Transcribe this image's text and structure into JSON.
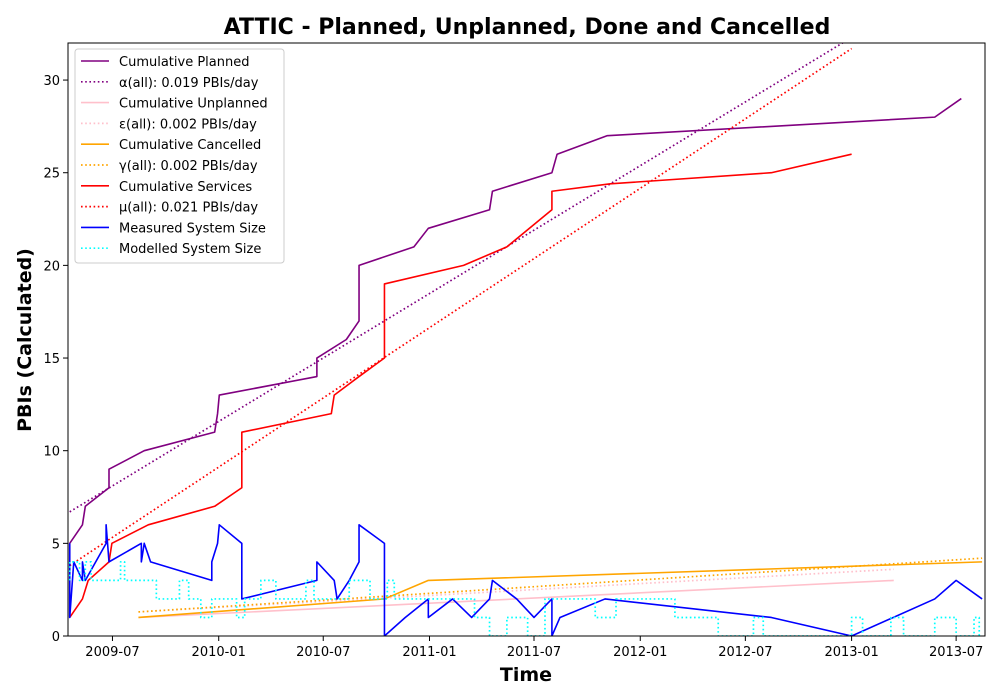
{
  "chart_data": {
    "type": "line",
    "title": "ATTIC - Planned, Unplanned, Done  and Cancelled",
    "xlabel": "Time",
    "ylabel": "PBIs (Calculated)",
    "xlim": [
      "2009-04-15",
      "2013-08-20"
    ],
    "ylim": [
      0,
      32
    ],
    "x_ticks": [
      "2009-07-01",
      "2010-01-01",
      "2010-07-01",
      "2011-01-01",
      "2011-07-01",
      "2012-01-01",
      "2012-07-01",
      "2013-01-01",
      "2013-07-01"
    ],
    "x_tick_labels": [
      "2009-07",
      "2010-01",
      "2010-07",
      "2011-01",
      "2011-07",
      "2012-01",
      "2012-07",
      "2013-01",
      "2013-07"
    ],
    "y_ticks": [
      0,
      5,
      10,
      15,
      20,
      25,
      30
    ],
    "y_tick_labels": [
      "0",
      "5",
      "10",
      "15",
      "20",
      "25",
      "30"
    ],
    "legend_position": "top-left",
    "grid": false,
    "series": [
      {
        "name": "Cumulative Planned",
        "color": "#800080",
        "style": "solid",
        "points": [
          [
            "2009-04-18",
            1
          ],
          [
            "2009-04-18",
            5
          ],
          [
            "2009-05-10",
            6
          ],
          [
            "2009-05-15",
            7
          ],
          [
            "2009-06-25",
            8
          ],
          [
            "2009-06-25",
            9
          ],
          [
            "2009-08-25",
            10
          ],
          [
            "2009-12-25",
            11
          ],
          [
            "2009-12-30",
            12
          ],
          [
            "2010-01-02",
            13
          ],
          [
            "2010-06-20",
            14
          ],
          [
            "2010-06-20",
            15
          ],
          [
            "2010-08-10",
            16
          ],
          [
            "2010-09-01",
            17
          ],
          [
            "2010-09-01",
            20
          ],
          [
            "2010-12-05",
            21
          ],
          [
            "2010-12-30",
            22
          ],
          [
            "2011-04-15",
            23
          ],
          [
            "2011-04-20",
            24
          ],
          [
            "2011-08-01",
            25
          ],
          [
            "2011-08-10",
            26
          ],
          [
            "2011-11-05",
            27
          ],
          [
            "2013-05-25",
            28
          ],
          [
            "2013-07-10",
            29
          ]
        ]
      },
      {
        "name": "α(all): 0.019 PBIs/day",
        "color": "#800080",
        "style": "dotted",
        "points": [
          [
            "2009-04-18",
            6.7
          ],
          [
            "2013-01-01",
            32.3
          ]
        ]
      },
      {
        "name": "Cumulative Unplanned",
        "color": "#ffc0cb",
        "style": "solid",
        "points": [
          [
            "2009-08-15",
            1
          ],
          [
            "2013-03-15",
            3
          ]
        ]
      },
      {
        "name": "ε(all): 0.002 PBIs/day",
        "color": "#ffc0cb",
        "style": "dotted",
        "points": [
          [
            "2009-08-15",
            1.3
          ],
          [
            "2013-03-15",
            3.6
          ]
        ]
      },
      {
        "name": "Cumulative Cancelled",
        "color": "#ffa500",
        "style": "solid",
        "points": [
          [
            "2009-08-15",
            1
          ],
          [
            "2010-10-15",
            2
          ],
          [
            "2010-12-30",
            3
          ],
          [
            "2013-08-15",
            4
          ]
        ]
      },
      {
        "name": "γ(all): 0.002 PBIs/day",
        "color": "#ffa500",
        "style": "dotted",
        "points": [
          [
            "2009-08-15",
            1.3
          ],
          [
            "2013-08-15",
            4.2
          ]
        ]
      },
      {
        "name": "Cumulative Services",
        "color": "#ff0000",
        "style": "solid",
        "points": [
          [
            "2009-04-18",
            1
          ],
          [
            "2009-05-10",
            2
          ],
          [
            "2009-05-20",
            3
          ],
          [
            "2009-06-25",
            4
          ],
          [
            "2009-06-30",
            5
          ],
          [
            "2009-09-01",
            6
          ],
          [
            "2009-12-25",
            7
          ],
          [
            "2010-02-10",
            8
          ],
          [
            "2010-02-10",
            11
          ],
          [
            "2010-07-15",
            12
          ],
          [
            "2010-07-20",
            13
          ],
          [
            "2010-09-01",
            14
          ],
          [
            "2010-10-15",
            15
          ],
          [
            "2010-10-15",
            19
          ],
          [
            "2011-03-01",
            20
          ],
          [
            "2011-05-15",
            21
          ],
          [
            "2011-08-01",
            23
          ],
          [
            "2011-08-01",
            24
          ],
          [
            "2011-11-10",
            24.4
          ],
          [
            "2012-08-15",
            25
          ],
          [
            "2013-01-01",
            26
          ]
        ]
      },
      {
        "name": "μ(all): 0.021 PBIs/day",
        "color": "#ff0000",
        "style": "dotted",
        "points": [
          [
            "2009-04-18",
            3.8
          ],
          [
            "2013-01-01",
            31.7
          ]
        ]
      },
      {
        "name": "Measured System Size",
        "color": "#0000ff",
        "style": "solid",
        "points": [
          [
            "2009-04-18",
            5
          ],
          [
            "2009-04-18",
            1
          ],
          [
            "2009-04-25",
            4
          ],
          [
            "2009-05-10",
            3
          ],
          [
            "2009-05-10",
            4
          ],
          [
            "2009-05-15",
            3
          ],
          [
            "2009-06-20",
            5
          ],
          [
            "2009-06-20",
            6
          ],
          [
            "2009-06-25",
            4
          ],
          [
            "2009-08-20",
            5
          ],
          [
            "2009-08-20",
            4
          ],
          [
            "2009-08-25",
            5
          ],
          [
            "2009-09-05",
            4
          ],
          [
            "2009-12-20",
            3
          ],
          [
            "2009-12-20",
            4
          ],
          [
            "2009-12-30",
            5
          ],
          [
            "2010-01-02",
            6
          ],
          [
            "2010-02-10",
            5
          ],
          [
            "2010-02-10",
            2
          ],
          [
            "2010-06-20",
            3
          ],
          [
            "2010-06-20",
            4
          ],
          [
            "2010-07-20",
            3
          ],
          [
            "2010-07-25",
            2
          ],
          [
            "2010-08-15",
            3
          ],
          [
            "2010-09-01",
            4
          ],
          [
            "2010-09-01",
            6
          ],
          [
            "2010-10-15",
            5
          ],
          [
            "2010-10-15",
            0
          ],
          [
            "2010-11-20",
            1
          ],
          [
            "2010-12-30",
            2
          ],
          [
            "2010-12-30",
            1
          ],
          [
            "2011-02-10",
            2
          ],
          [
            "2011-03-15",
            1
          ],
          [
            "2011-04-15",
            2
          ],
          [
            "2011-04-20",
            3
          ],
          [
            "2011-06-01",
            2
          ],
          [
            "2011-07-01",
            1
          ],
          [
            "2011-08-01",
            2
          ],
          [
            "2011-08-01",
            0
          ],
          [
            "2011-08-15",
            1
          ],
          [
            "2011-11-01",
            2
          ],
          [
            "2012-08-15",
            1
          ],
          [
            "2013-01-01",
            0
          ],
          [
            "2013-05-25",
            2
          ],
          [
            "2013-07-01",
            3
          ],
          [
            "2013-08-15",
            2
          ]
        ]
      },
      {
        "name": "Modelled System Size",
        "color": "#00ffff",
        "style": "dotted",
        "points": [
          [
            "2009-04-18",
            3
          ],
          [
            "2009-04-18",
            4
          ],
          [
            "2009-05-05",
            4
          ],
          [
            "2009-05-05",
            3
          ],
          [
            "2009-05-15",
            3
          ],
          [
            "2009-05-15",
            4
          ],
          [
            "2009-05-25",
            4
          ],
          [
            "2009-05-25",
            3
          ],
          [
            "2009-07-15",
            3
          ],
          [
            "2009-07-15",
            4
          ],
          [
            "2009-07-22",
            4
          ],
          [
            "2009-07-22",
            3
          ],
          [
            "2009-09-15",
            3
          ],
          [
            "2009-09-15",
            2
          ],
          [
            "2009-10-25",
            2
          ],
          [
            "2009-10-25",
            3
          ],
          [
            "2009-11-10",
            3
          ],
          [
            "2009-11-10",
            2
          ],
          [
            "2009-12-01",
            2
          ],
          [
            "2009-12-01",
            1
          ],
          [
            "2009-12-20",
            1
          ],
          [
            "2009-12-20",
            2
          ],
          [
            "2010-02-01",
            2
          ],
          [
            "2010-02-01",
            1
          ],
          [
            "2010-02-15",
            1
          ],
          [
            "2010-02-15",
            2
          ],
          [
            "2010-03-15",
            2
          ],
          [
            "2010-03-15",
            3
          ],
          [
            "2010-04-10",
            3
          ],
          [
            "2010-04-10",
            2
          ],
          [
            "2010-06-01",
            2
          ],
          [
            "2010-06-01",
            3
          ],
          [
            "2010-06-15",
            3
          ],
          [
            "2010-06-15",
            2
          ],
          [
            "2010-08-15",
            2
          ],
          [
            "2010-08-15",
            3
          ],
          [
            "2010-09-20",
            3
          ],
          [
            "2010-09-20",
            2
          ],
          [
            "2010-10-20",
            2
          ],
          [
            "2010-10-20",
            3
          ],
          [
            "2010-11-01",
            3
          ],
          [
            "2010-11-01",
            2
          ],
          [
            "2011-03-20",
            2
          ],
          [
            "2011-03-20",
            1
          ],
          [
            "2011-04-15",
            1
          ],
          [
            "2011-04-15",
            0
          ],
          [
            "2011-05-15",
            0
          ],
          [
            "2011-05-15",
            1
          ],
          [
            "2011-06-20",
            1
          ],
          [
            "2011-06-20",
            0
          ],
          [
            "2011-07-20",
            0
          ],
          [
            "2011-07-20",
            2
          ],
          [
            "2011-10-15",
            2
          ],
          [
            "2011-10-15",
            1
          ],
          [
            "2011-11-20",
            1
          ],
          [
            "2011-11-20",
            2
          ],
          [
            "2012-03-01",
            2
          ],
          [
            "2012-03-01",
            1
          ],
          [
            "2012-05-15",
            1
          ],
          [
            "2012-05-15",
            0
          ],
          [
            "2012-07-15",
            0
          ],
          [
            "2012-07-15",
            1
          ],
          [
            "2012-08-01",
            1
          ],
          [
            "2012-08-01",
            0
          ],
          [
            "2013-01-01",
            0
          ],
          [
            "2013-01-01",
            1
          ],
          [
            "2013-01-20",
            1
          ],
          [
            "2013-01-20",
            0
          ],
          [
            "2013-03-10",
            0
          ],
          [
            "2013-03-10",
            1
          ],
          [
            "2013-04-01",
            1
          ],
          [
            "2013-04-01",
            0
          ],
          [
            "2013-05-25",
            0
          ],
          [
            "2013-05-25",
            1
          ],
          [
            "2013-07-01",
            1
          ],
          [
            "2013-07-01",
            0
          ],
          [
            "2013-08-01",
            0
          ],
          [
            "2013-08-01",
            1
          ],
          [
            "2013-08-10",
            1
          ],
          [
            "2013-08-10",
            0
          ]
        ]
      }
    ]
  }
}
